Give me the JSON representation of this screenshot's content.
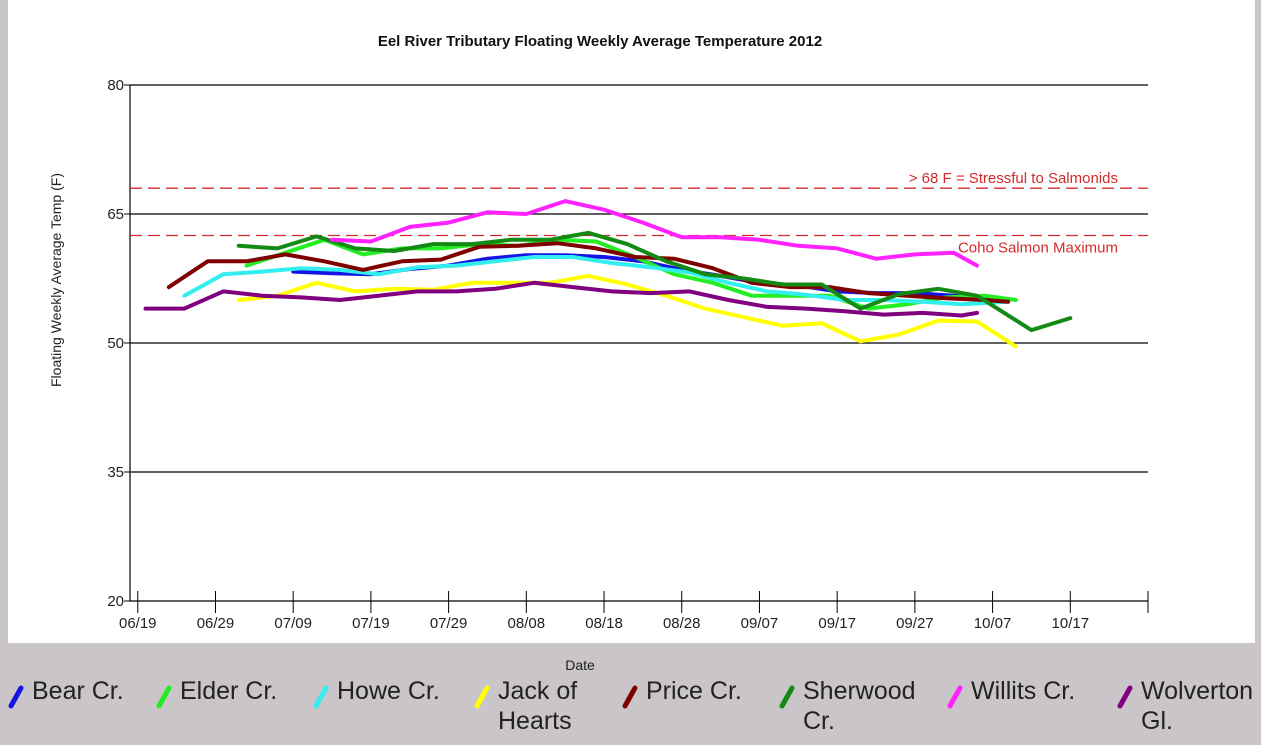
{
  "chart_data": {
    "type": "line",
    "title": "Eel River Tributary Floating Weekly Average Temperature 2012",
    "xlabel": "Date",
    "ylabel": "Floating Weekly Average Temp (F)",
    "xlim": [
      "06/18",
      "10/27"
    ],
    "xticks": [
      "06/19",
      "06/29",
      "07/09",
      "07/19",
      "07/29",
      "08/08",
      "08/18",
      "08/28",
      "09/07",
      "09/17",
      "09/27",
      "10/07",
      "10/17"
    ],
    "ylim": [
      20,
      80
    ],
    "yticks": [
      20,
      35,
      50,
      65,
      80
    ],
    "grid": true,
    "reference_lines": [
      {
        "value": 68,
        "label": "> 68 F = Stressful to Salmonids",
        "color": "#d42a2a"
      },
      {
        "value": 62.5,
        "label": "Coho Salmon Maximum",
        "color": "#d42a2a"
      }
    ],
    "series": [
      {
        "name": "Bear Cr.",
        "color": "#1414e6",
        "x": [
          "07/09",
          "07/14",
          "07/19",
          "07/24",
          "07/29",
          "08/03",
          "08/08",
          "08/13",
          "08/18",
          "08/23",
          "08/28",
          "09/02",
          "09/07",
          "09/12",
          "09/17",
          "09/22",
          "09/27",
          "10/02",
          "10/07"
        ],
        "values": [
          58.3,
          58.1,
          58.0,
          58.6,
          59.0,
          59.8,
          60.2,
          60.2,
          60.0,
          59.5,
          58.5,
          57.8,
          57.0,
          56.7,
          56.0,
          55.8,
          55.8,
          55.5,
          55.1
        ]
      },
      {
        "name": "Elder Cr.",
        "color": "#22ee22",
        "x": [
          "07/03",
          "07/08",
          "07/13",
          "07/18",
          "07/23",
          "07/28",
          "08/02",
          "08/07",
          "08/12",
          "08/17",
          "08/22",
          "08/27",
          "09/01",
          "09/06",
          "09/11",
          "09/16",
          "09/21",
          "09/26",
          "10/01",
          "10/06",
          "10/10"
        ],
        "values": [
          59.0,
          60.5,
          62.0,
          60.3,
          61.0,
          61.0,
          61.5,
          61.3,
          62.0,
          61.8,
          60.0,
          58.0,
          57.0,
          55.5,
          55.5,
          55.5,
          54.0,
          54.5,
          55.3,
          55.5,
          55.0
        ]
      },
      {
        "name": "Howe Cr.",
        "color": "#33eeee",
        "x": [
          "06/25",
          "06/30",
          "07/05",
          "07/10",
          "07/15",
          "07/20",
          "07/25",
          "07/30",
          "08/04",
          "08/09",
          "08/14",
          "08/19",
          "08/24",
          "08/29",
          "09/03",
          "09/08",
          "09/13",
          "09/18",
          "09/23",
          "09/28",
          "10/03",
          "10/09"
        ],
        "values": [
          55.5,
          58.0,
          58.3,
          58.7,
          58.5,
          58.0,
          58.8,
          59.0,
          59.5,
          60.0,
          60.0,
          59.3,
          58.8,
          58.2,
          57.0,
          56.0,
          55.6,
          55.0,
          55.0,
          54.8,
          54.5,
          54.8
        ]
      },
      {
        "name": "Jack of Hearts",
        "color": "#ffff00",
        "x": [
          "07/02",
          "07/07",
          "07/12",
          "07/17",
          "07/22",
          "07/27",
          "08/01",
          "08/06",
          "08/11",
          "08/16",
          "08/21",
          "08/26",
          "08/31",
          "09/05",
          "09/10",
          "09/15",
          "09/20",
          "09/25",
          "09/30",
          "10/05",
          "10/10"
        ],
        "values": [
          55.0,
          55.5,
          57.0,
          56.0,
          56.3,
          56.2,
          57.0,
          57.0,
          57.0,
          57.8,
          56.8,
          55.5,
          54.0,
          53.0,
          52.0,
          52.3,
          50.2,
          51.0,
          52.6,
          52.5,
          49.6
        ]
      },
      {
        "name": "Price Cr.",
        "color": "#800000",
        "x": [
          "06/23",
          "06/28",
          "07/03",
          "07/08",
          "07/13",
          "07/18",
          "07/23",
          "07/28",
          "08/02",
          "08/07",
          "08/12",
          "08/17",
          "08/22",
          "08/27",
          "09/01",
          "09/06",
          "09/11",
          "09/16",
          "09/21",
          "09/26",
          "10/01",
          "10/06",
          "10/09"
        ],
        "values": [
          56.5,
          59.5,
          59.5,
          60.3,
          59.5,
          58.5,
          59.5,
          59.7,
          61.2,
          61.3,
          61.6,
          61.0,
          60.0,
          59.8,
          58.7,
          57.0,
          56.5,
          56.5,
          55.8,
          55.5,
          55.2,
          55.0,
          54.8
        ]
      },
      {
        "name": "Sherwood Cr.",
        "color": "#138a13",
        "x": [
          "07/02",
          "07/07",
          "07/12",
          "07/17",
          "07/22",
          "07/27",
          "08/01",
          "08/06",
          "08/11",
          "08/16",
          "08/21",
          "08/26",
          "08/31",
          "09/05",
          "09/10",
          "09/15",
          "09/20",
          "09/25",
          "09/30",
          "10/05",
          "10/12",
          "10/17"
        ],
        "values": [
          61.3,
          61.0,
          62.4,
          61.0,
          60.7,
          61.5,
          61.5,
          62.0,
          62.0,
          62.8,
          61.5,
          59.5,
          58.0,
          57.5,
          56.8,
          56.8,
          54.0,
          55.7,
          56.3,
          55.5,
          51.5,
          52.9
        ]
      },
      {
        "name": "Willits Cr.",
        "color": "#ff22ff",
        "x": [
          "07/14",
          "07/19",
          "07/24",
          "07/29",
          "08/03",
          "08/08",
          "08/13",
          "08/18",
          "08/23",
          "08/28",
          "09/02",
          "09/07",
          "09/12",
          "09/17",
          "09/22",
          "09/27",
          "10/02",
          "10/05"
        ],
        "values": [
          62.0,
          61.8,
          63.5,
          64.0,
          65.2,
          65.0,
          66.5,
          65.5,
          64.0,
          62.3,
          62.3,
          62.0,
          61.3,
          61.0,
          59.8,
          60.3,
          60.5,
          59.0
        ]
      },
      {
        "name": "Wolverton Gl.",
        "color": "#800080",
        "x": [
          "06/20",
          "06/25",
          "06/30",
          "07/05",
          "07/10",
          "07/15",
          "07/20",
          "07/25",
          "07/30",
          "08/04",
          "08/09",
          "08/14",
          "08/19",
          "08/24",
          "08/29",
          "09/03",
          "09/08",
          "09/13",
          "09/18",
          "09/23",
          "09/28",
          "10/03",
          "10/05"
        ],
        "values": [
          54.0,
          54.0,
          56.0,
          55.5,
          55.3,
          55.0,
          55.5,
          56.0,
          56.0,
          56.3,
          57.0,
          56.5,
          56.0,
          55.8,
          56.0,
          55.0,
          54.2,
          54.0,
          53.7,
          53.3,
          53.5,
          53.2,
          53.5
        ]
      }
    ]
  }
}
